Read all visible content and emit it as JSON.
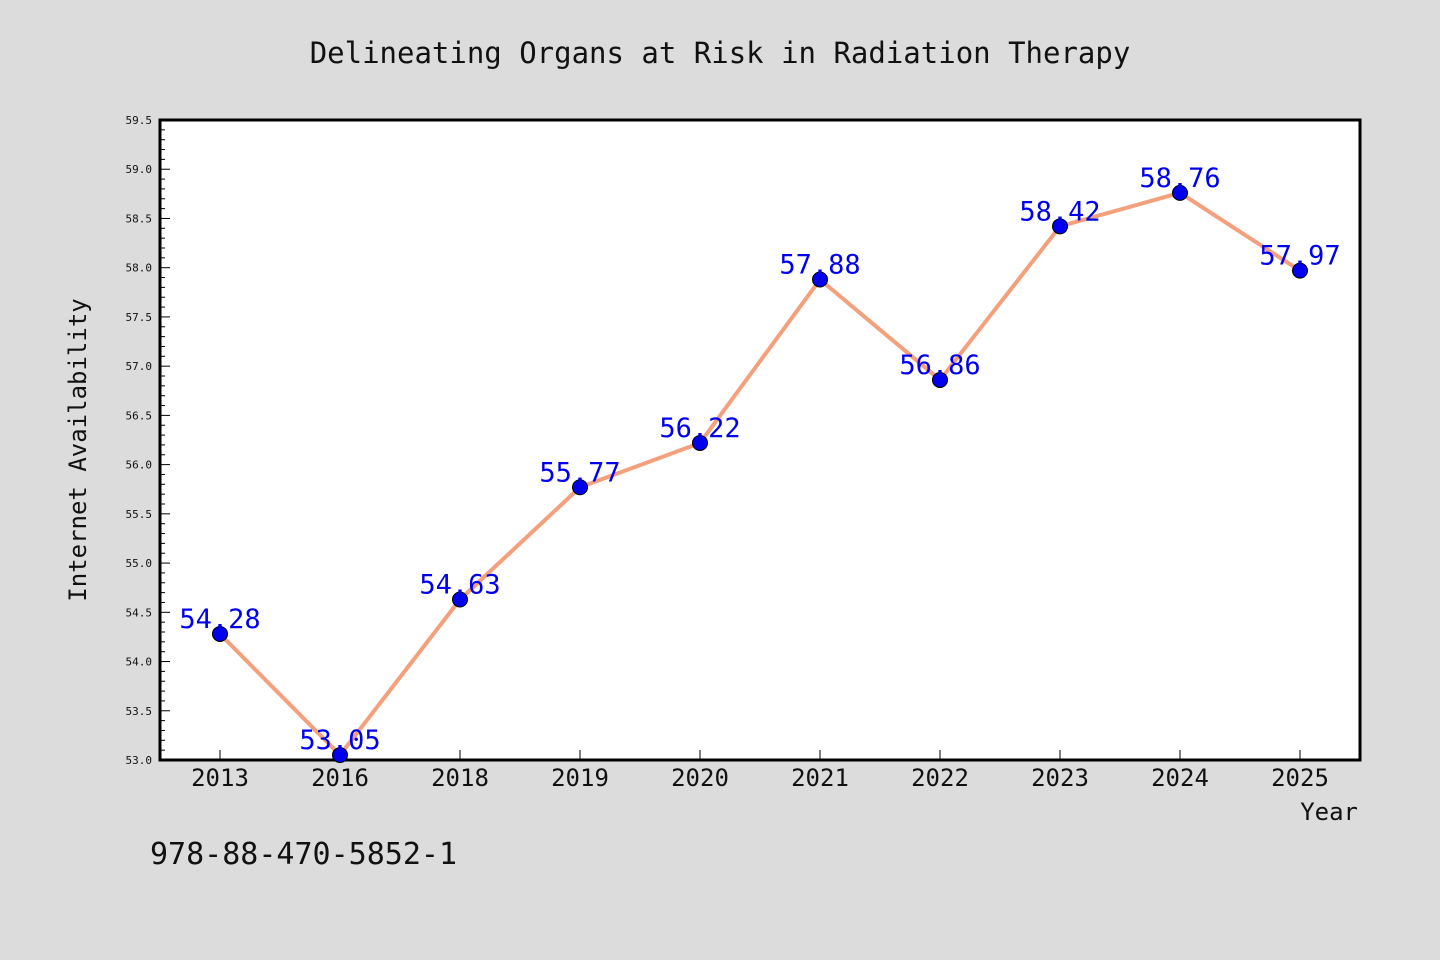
{
  "chart_data": {
    "type": "line",
    "title": "Delineating Organs at Risk in Radiation Therapy",
    "xlabel": "Year",
    "ylabel": "Internet Availability",
    "categories": [
      "2013",
      "2016",
      "2018",
      "2019",
      "2020",
      "2021",
      "2022",
      "2023",
      "2024",
      "2025"
    ],
    "series": [
      {
        "values": [
          54.28,
          53.05,
          54.63,
          55.77,
          56.22,
          57.88,
          56.86,
          58.42,
          58.76,
          57.97
        ],
        "data_labels": [
          "54.28",
          "53.05",
          "54.63",
          "55.77",
          "56.22",
          "57.88",
          "56.86",
          "58.42",
          "58.76",
          "57.97"
        ],
        "line_color": "#f4a07c",
        "marker_color": "#0000ee",
        "label_color": "#0000ee"
      }
    ],
    "ylim": [
      53.0,
      59.5
    ],
    "yticks": [
      "53.0",
      "53.5",
      "54.0",
      "54.5",
      "55.0",
      "55.5",
      "56.0",
      "56.5",
      "57.0",
      "57.5",
      "58.0",
      "58.5",
      "59.0",
      "59.5"
    ],
    "grid": false,
    "legend": "none"
  },
  "footer_text": "978-88-470-5852-1",
  "colors": {
    "background": "#dcdcdc",
    "plot_background": "#ffffff"
  }
}
